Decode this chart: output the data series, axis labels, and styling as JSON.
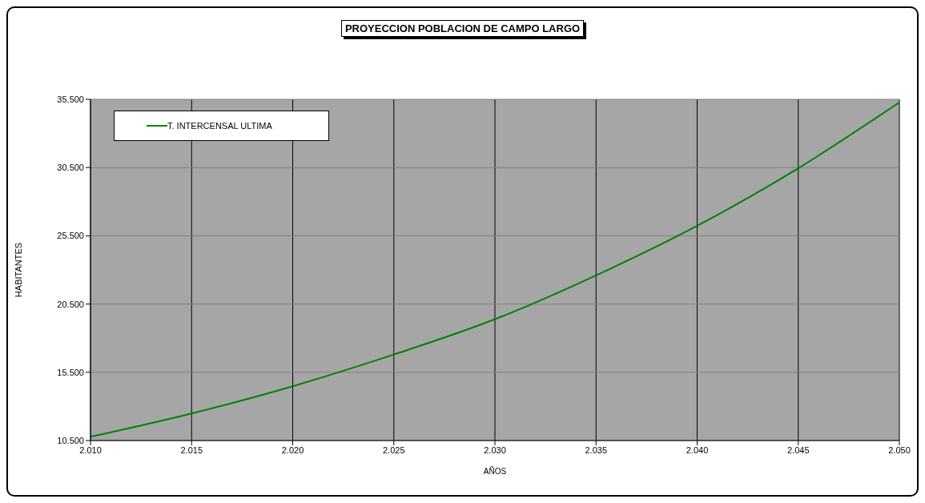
{
  "chart_data": {
    "type": "line",
    "title": "PROYECCION POBLACION DE CAMPO LARGO",
    "xlabel": "AÑOS",
    "ylabel": "HABITANTES",
    "x": [
      2010,
      2015,
      2020,
      2025,
      2030,
      2035,
      2040,
      2045,
      2050
    ],
    "series": [
      {
        "name": "T. INTERCENSAL ULTIMA",
        "color": "#008000",
        "values": [
          10770,
          12480,
          14480,
          16800,
          19390,
          22600,
          26230,
          30450,
          35270
        ]
      }
    ],
    "xlim": [
      2010,
      2050
    ],
    "xticks": [
      {
        "value": 2010,
        "label": "2.010"
      },
      {
        "value": 2015,
        "label": "2.015"
      },
      {
        "value": 2020,
        "label": "2.020"
      },
      {
        "value": 2025,
        "label": "2.025"
      },
      {
        "value": 2030,
        "label": "2.030"
      },
      {
        "value": 2035,
        "label": "2.035"
      },
      {
        "value": 2040,
        "label": "2.040"
      },
      {
        "value": 2045,
        "label": "2.045"
      },
      {
        "value": 2050,
        "label": "2.050"
      }
    ],
    "ylim": [
      10500,
      35500
    ],
    "yticks": [
      {
        "value": 10500,
        "label": "10.500"
      },
      {
        "value": 15500,
        "label": "15.500"
      },
      {
        "value": 20500,
        "label": "20.500"
      },
      {
        "value": 25500,
        "label": "25.500"
      },
      {
        "value": 30500,
        "label": "30.500"
      },
      {
        "value": 35500,
        "label": "35.500"
      }
    ],
    "grid": true,
    "legend": "top left",
    "marker": "none",
    "line_style": "solid"
  }
}
